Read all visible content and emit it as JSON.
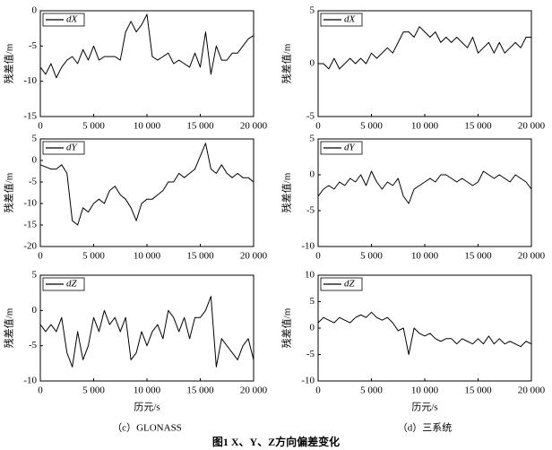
{
  "figure": {
    "title": "图1  X、Y、Z方向偏差变化",
    "captions": [
      "（c）GLONASS",
      "（d）三系统"
    ]
  },
  "chart_data": [
    {
      "type": "line",
      "ylabel": "残差值/m",
      "ylim": [
        -15,
        0
      ],
      "yticks": [
        -15,
        -10,
        -5,
        0
      ],
      "xlim": [
        0,
        20000
      ],
      "xticks": [
        0,
        {
          "value": 5000,
          "label": "5 000"
        },
        {
          "value": 10000,
          "label": "10 000"
        },
        {
          "value": 15000,
          "label": "15 000"
        },
        {
          "value": 20000,
          "label": "20 000"
        }
      ],
      "x": [
        0,
        500,
        1000,
        1500,
        2000,
        2500,
        3000,
        3500,
        4000,
        4500,
        5000,
        5500,
        6000,
        6500,
        7000,
        7500,
        8000,
        8500,
        9000,
        9500,
        10000,
        10500,
        11000,
        11500,
        12000,
        12500,
        13000,
        13500,
        14000,
        14500,
        15000,
        15500,
        16000,
        16500,
        17000,
        17500,
        18000,
        18500,
        19000,
        19500,
        20000
      ],
      "series": [
        {
          "name": "dX",
          "color": "#000000",
          "values": [
            -8,
            -9,
            -7.5,
            -9.5,
            -8,
            -7,
            -6.5,
            -7.5,
            -5.5,
            -7,
            -5,
            -7,
            -6.5,
            -6.5,
            -6.5,
            -7,
            -3,
            -1.5,
            -3,
            -2,
            -0.5,
            -6.5,
            -7,
            -6.5,
            -6,
            -7.5,
            -7,
            -7.5,
            -8,
            -6,
            -8,
            -3,
            -9,
            -5,
            -7,
            -7,
            -6,
            -6,
            -5,
            -4,
            -3.5
          ]
        }
      ]
    },
    {
      "type": "line",
      "ylabel": "残差值/m",
      "ylim": [
        -5,
        5
      ],
      "yticks": [
        -5,
        0,
        5
      ],
      "xlim": [
        0,
        20000
      ],
      "xticks": [
        0,
        {
          "value": 5000,
          "label": "5 000"
        },
        {
          "value": 10000,
          "label": "10 000"
        },
        {
          "value": 15000,
          "label": "15 000"
        },
        {
          "value": 20000,
          "label": "20 000"
        }
      ],
      "x": [
        0,
        500,
        1000,
        1500,
        2000,
        2500,
        3000,
        3500,
        4000,
        4500,
        5000,
        5500,
        6000,
        6500,
        7000,
        7500,
        8000,
        8500,
        9000,
        9500,
        10000,
        10500,
        11000,
        11500,
        12000,
        12500,
        13000,
        13500,
        14000,
        14500,
        15000,
        15500,
        16000,
        16500,
        17000,
        17500,
        18000,
        18500,
        19000,
        19500,
        20000
      ],
      "series": [
        {
          "name": "dX",
          "color": "#000000",
          "values": [
            0,
            0,
            -0.5,
            0.5,
            -0.5,
            0,
            0.5,
            0,
            0.5,
            0,
            1,
            0.5,
            1,
            1.5,
            1,
            2,
            3,
            3,
            2.5,
            3.5,
            3,
            2.5,
            3,
            2,
            2.5,
            2,
            2.5,
            2,
            1.5,
            2.5,
            1,
            1.5,
            2,
            1,
            2,
            1,
            1.5,
            2,
            1.5,
            2.5,
            2.5
          ]
        }
      ]
    },
    {
      "type": "line",
      "ylabel": "残差值/m",
      "ylim": [
        -20,
        5
      ],
      "yticks": [
        -20,
        -15,
        -10,
        -5,
        0,
        5
      ],
      "xlim": [
        0,
        20000
      ],
      "xticks": [
        0,
        {
          "value": 5000,
          "label": "5 000"
        },
        {
          "value": 10000,
          "label": "10 000"
        },
        {
          "value": 15000,
          "label": "15 000"
        },
        {
          "value": 20000,
          "label": "20 000"
        }
      ],
      "x": [
        0,
        500,
        1000,
        1500,
        2000,
        2500,
        3000,
        3500,
        4000,
        4500,
        5000,
        5500,
        6000,
        6500,
        7000,
        7500,
        8000,
        8500,
        9000,
        9500,
        10000,
        10500,
        11000,
        11500,
        12000,
        12500,
        13000,
        13500,
        14000,
        14500,
        15000,
        15500,
        16000,
        16500,
        17000,
        17500,
        18000,
        18500,
        19000,
        19500,
        20000
      ],
      "series": [
        {
          "name": "dY",
          "color": "#000000",
          "values": [
            -1,
            -1.5,
            -2,
            -2,
            -1,
            -3,
            -14,
            -15,
            -11,
            -12,
            -10,
            -9,
            -10,
            -7,
            -6,
            -8,
            -9,
            -11,
            -14,
            -10,
            -9,
            -9,
            -8,
            -7,
            -5,
            -5,
            -3,
            -4,
            -3,
            -2,
            1,
            4,
            -2,
            -3,
            -1,
            -3,
            -4,
            -3,
            -4,
            -4,
            -5
          ]
        }
      ]
    },
    {
      "type": "line",
      "ylabel": "残差值/m",
      "ylim": [
        -10,
        5
      ],
      "yticks": [
        -10,
        -5,
        0,
        5
      ],
      "xlim": [
        0,
        20000
      ],
      "xticks": [
        0,
        {
          "value": 5000,
          "label": "5 000"
        },
        {
          "value": 10000,
          "label": "10 000"
        },
        {
          "value": 15000,
          "label": "15 000"
        },
        {
          "value": 20000,
          "label": "20 000"
        }
      ],
      "x": [
        0,
        500,
        1000,
        1500,
        2000,
        2500,
        3000,
        3500,
        4000,
        4500,
        5000,
        5500,
        6000,
        6500,
        7000,
        7500,
        8000,
        8500,
        9000,
        9500,
        10000,
        10500,
        11000,
        11500,
        12000,
        12500,
        13000,
        13500,
        14000,
        14500,
        15000,
        15500,
        16000,
        16500,
        17000,
        17500,
        18000,
        18500,
        19000,
        19500,
        20000
      ],
      "series": [
        {
          "name": "dY",
          "color": "#000000",
          "values": [
            -3,
            -2,
            -1.5,
            -2,
            -1,
            -1.5,
            -0.5,
            -1,
            0,
            -1.5,
            0.5,
            -1,
            -2,
            -1,
            -1.5,
            -0.5,
            -3,
            -4,
            -2,
            -1.5,
            -1,
            -0.5,
            -1,
            0,
            0,
            -0.5,
            -1,
            -0.5,
            -1,
            -1.5,
            -1,
            0.5,
            0,
            -0.5,
            0,
            -0.5,
            -1,
            0,
            -0.5,
            -1,
            -2
          ]
        }
      ]
    },
    {
      "type": "line",
      "ylabel": "残差值/m",
      "xlabel": "历元/s",
      "ylim": [
        -10,
        5
      ],
      "yticks": [
        -10,
        -5,
        0,
        5
      ],
      "xlim": [
        0,
        20000
      ],
      "xticks": [
        0,
        {
          "value": 5000,
          "label": "5 000"
        },
        {
          "value": 10000,
          "label": "10 000"
        },
        {
          "value": 15000,
          "label": "15 000"
        },
        {
          "value": 20000,
          "label": "20 000"
        }
      ],
      "x": [
        0,
        500,
        1000,
        1500,
        2000,
        2500,
        3000,
        3500,
        4000,
        4500,
        5000,
        5500,
        6000,
        6500,
        7000,
        7500,
        8000,
        8500,
        9000,
        9500,
        10000,
        10500,
        11000,
        11500,
        12000,
        12500,
        13000,
        13500,
        14000,
        14500,
        15000,
        15500,
        16000,
        16500,
        17000,
        17500,
        18000,
        18500,
        19000,
        19500,
        20000
      ],
      "series": [
        {
          "name": "dZ",
          "color": "#000000",
          "values": [
            -2,
            -3,
            -2,
            -3,
            -1,
            -6,
            -8,
            -3,
            -7,
            -5,
            -1,
            -3,
            0,
            -2,
            -1,
            -3,
            -1,
            -7,
            -6,
            -3,
            -5,
            -3,
            -2,
            -4,
            0,
            -1,
            -3,
            -1,
            -4,
            -1,
            -1,
            0,
            2,
            -8,
            -4,
            -5,
            -6,
            -7,
            -5,
            -4,
            -7
          ]
        }
      ]
    },
    {
      "type": "line",
      "ylabel": "残差值/m",
      "xlabel": "历元/s",
      "ylim": [
        -10,
        10
      ],
      "yticks": [
        -10,
        -5,
        0,
        5,
        10
      ],
      "xlim": [
        0,
        20000
      ],
      "xticks": [
        0,
        {
          "value": 5000,
          "label": "5 000"
        },
        {
          "value": 10000,
          "label": "10 000"
        },
        {
          "value": 15000,
          "label": "15 000"
        },
        {
          "value": 20000,
          "label": "20 000"
        }
      ],
      "x": [
        0,
        500,
        1000,
        1500,
        2000,
        2500,
        3000,
        3500,
        4000,
        4500,
        5000,
        5500,
        6000,
        6500,
        7000,
        7500,
        8000,
        8500,
        9000,
        9500,
        10000,
        10500,
        11000,
        11500,
        12000,
        12500,
        13000,
        13500,
        14000,
        14500,
        15000,
        15500,
        16000,
        16500,
        17000,
        17500,
        18000,
        18500,
        19000,
        19500,
        20000
      ],
      "series": [
        {
          "name": "dZ",
          "color": "#000000",
          "values": [
            1,
            2,
            1.5,
            1,
            2,
            1.5,
            1,
            2,
            2.5,
            2,
            3,
            2,
            1.5,
            2,
            1,
            -0.5,
            0,
            -5,
            0,
            -1,
            -1.5,
            -1,
            -2,
            -2.5,
            -2,
            -2,
            -3,
            -2,
            -2.5,
            -3,
            -2,
            -3,
            -1.5,
            -3,
            -2,
            -3,
            -2.5,
            -3,
            -3.5,
            -2.5,
            -3
          ]
        }
      ]
    }
  ]
}
